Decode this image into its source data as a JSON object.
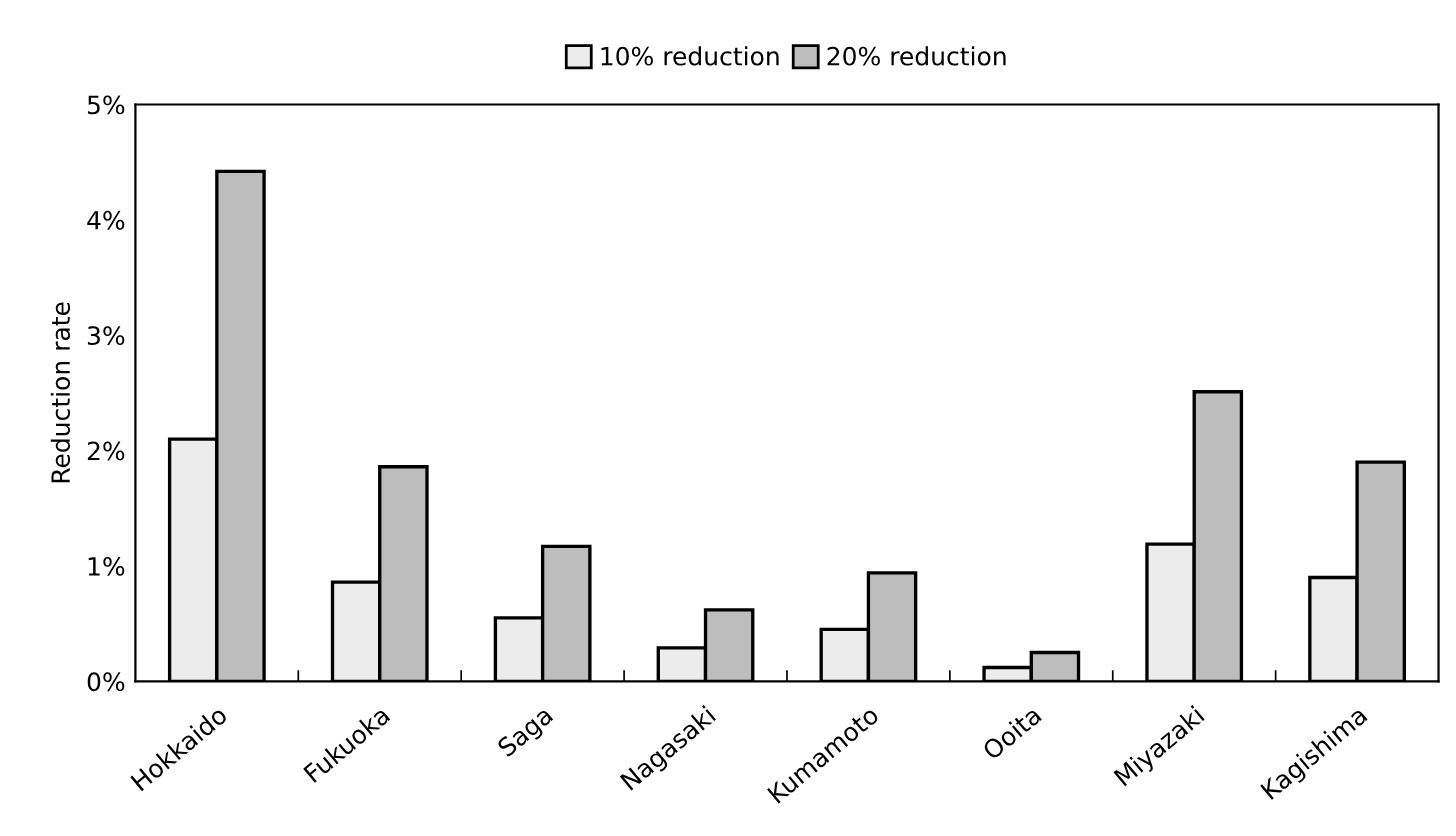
{
  "chart_data": {
    "type": "bar",
    "ylabel": "Reduction rate",
    "categories": [
      "Hokkaido",
      "Fukuoka",
      "Saga",
      "Nagasaki",
      "Kumamoto",
      "Ooita",
      "Miyazaki",
      "Kagishima"
    ],
    "series": [
      {
        "name": "10% reduction",
        "color": "#ececec",
        "values": [
          2.1,
          0.86,
          0.55,
          0.29,
          0.45,
          0.12,
          1.19,
          0.9
        ]
      },
      {
        "name": "20% reduction",
        "color": "#bdbdbd",
        "values": [
          4.42,
          1.86,
          1.17,
          0.62,
          0.94,
          0.25,
          2.51,
          1.9
        ]
      }
    ],
    "ylim": [
      0,
      5
    ],
    "yticks": [
      {
        "value": 0,
        "label": "0%"
      },
      {
        "value": 1,
        "label": "1%"
      },
      {
        "value": 2,
        "label": "2%"
      },
      {
        "value": 3,
        "label": "3%"
      },
      {
        "value": 4,
        "label": "4%"
      },
      {
        "value": 5,
        "label": "5%"
      }
    ],
    "grid": false,
    "legend": "top"
  }
}
